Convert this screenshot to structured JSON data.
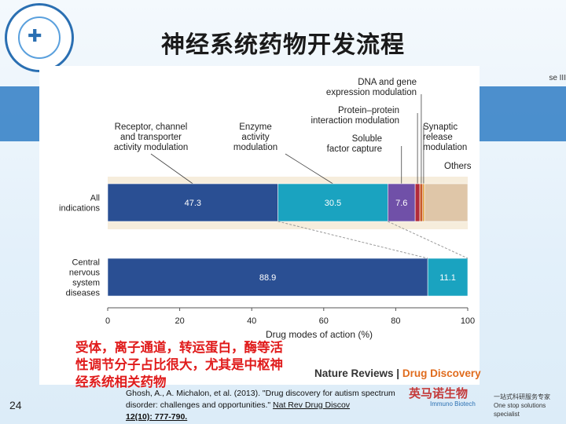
{
  "slide": {
    "title": "神经系统药物开发流程",
    "page_number": "24",
    "note": "受体，离子通道，转运蛋白，酶等活性调节分子占比很大，尤其是中枢神经系统相关药物",
    "citation_text": "Ghosh, A., A. Michalon, et al. (2013). \"Drug discovery for autism spectrum disorder: challenges and opportunities.\" ",
    "citation_ref": "Nat Rev Drug Discov",
    "citation_ref2": "12(10): 777-790.",
    "journal_a": "Nature Reviews",
    "journal_sep": " | ",
    "journal_b": "Drug Discovery",
    "partial_text": "se III",
    "brand_name": "英马诺生物",
    "brand_sub": "Immuno Biotech",
    "slogan_cn": "一站式科研服务专家",
    "slogan_en": "One stop solutions specialist"
  },
  "colors": {
    "receptor": "#2a4f93",
    "enzyme": "#1aa3c0",
    "dna": "#c95b2b",
    "protein": "#b12a3a",
    "soluble": "#7050a8",
    "synaptic": "#e2a03a",
    "others": "#dfc6a8",
    "title": "#1a1a1a",
    "note": "#e01b1b"
  },
  "chart_data": {
    "type": "bar",
    "orientation": "horizontal",
    "stacked": true,
    "categories": [
      "All indications",
      "Central nervous system diseases"
    ],
    "series": [
      {
        "name": "Receptor, channel and transporter activity modulation",
        "values": [
          47.3,
          88.9
        ],
        "color": "#2a4f93"
      },
      {
        "name": "Enzyme activity modulation",
        "values": [
          30.5,
          11.1
        ],
        "color": "#1aa3c0"
      },
      {
        "name": "Soluble factor capture",
        "values": [
          7.6,
          0
        ],
        "color": "#7050a8"
      },
      {
        "name": "Protein–protein interaction modulation",
        "values": [
          1.3,
          0
        ],
        "color": "#b12a3a"
      },
      {
        "name": "DNA and gene expression modulation",
        "values": [
          0.8,
          0
        ],
        "color": "#c95b2b"
      },
      {
        "name": "Synaptic release modulation",
        "values": [
          0.5,
          0
        ],
        "color": "#e2a03a"
      },
      {
        "name": "Others",
        "values": [
          12.0,
          0
        ],
        "color": "#dfc6a8"
      }
    ],
    "data_labels": [
      {
        "category": 0,
        "series": 0,
        "text": "47.3"
      },
      {
        "category": 0,
        "series": 1,
        "text": "30.5"
      },
      {
        "category": 0,
        "series": 2,
        "text": "7.6"
      },
      {
        "category": 1,
        "series": 0,
        "text": "88.9"
      },
      {
        "category": 1,
        "series": 1,
        "text": "11.1"
      }
    ],
    "category_labels": [
      [
        "All",
        "indications"
      ],
      [
        "Central",
        "nervous",
        "system",
        "diseases"
      ]
    ],
    "annotations": [
      {
        "series": 0,
        "lines": [
          "Receptor, channel",
          "and transporter",
          "activity modulation"
        ]
      },
      {
        "series": 1,
        "lines": [
          "Enzyme",
          "activity",
          "modulation"
        ]
      },
      {
        "series": 4,
        "lines": [
          "DNA and gene",
          "expression modulation"
        ]
      },
      {
        "series": 3,
        "lines": [
          "Protein–protein",
          "interaction modulation"
        ]
      },
      {
        "series": 2,
        "lines": [
          "Soluble",
          "factor capture"
        ]
      },
      {
        "series": 5,
        "lines": [
          "Synaptic",
          "release",
          "modulation"
        ]
      },
      {
        "series": 6,
        "lines": [
          "Others"
        ]
      }
    ],
    "xlabel": "Drug modes of action (%)",
    "xlim": [
      0,
      100
    ],
    "xticks": [
      "0",
      "20",
      "40",
      "60",
      "80",
      "100"
    ],
    "grid": false
  }
}
